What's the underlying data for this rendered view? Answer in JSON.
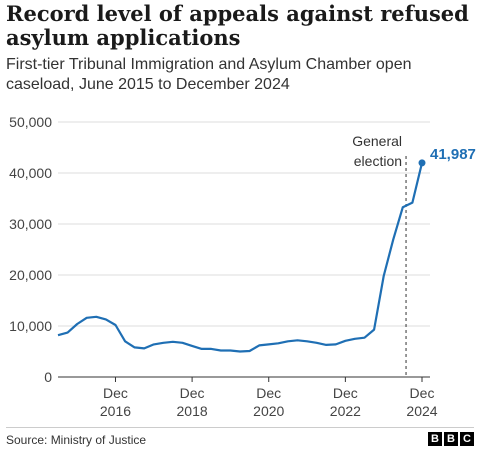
{
  "header": {
    "title": "Record level of appeals against refused asylum applications",
    "subtitle": "First-tier Tribunal Immigration and Asylum Chamber open caseload, June 2015 to December 2024"
  },
  "footer": {
    "source": "Source: Ministry of Justice",
    "logo_letters": [
      "B",
      "B",
      "C"
    ]
  },
  "chart_data": {
    "type": "line",
    "title": "Record level of appeals against refused asylum applications",
    "subtitle": "First-tier Tribunal Immigration and Asylum Chamber open caseload, June 2015 to December 2024",
    "xlabel": "",
    "ylabel": "",
    "ylim": [
      0,
      50000
    ],
    "yticks": [
      0,
      10000,
      20000,
      30000,
      40000,
      50000
    ],
    "ytick_labels": [
      "0",
      "10,000",
      "20,000",
      "30,000",
      "40,000",
      "50,000"
    ],
    "xlim": [
      "2015-06",
      "2024-12"
    ],
    "xticks": [
      {
        "date": "2016-12",
        "label_top": "Dec",
        "label_bottom": "2016"
      },
      {
        "date": "2018-12",
        "label_top": "Dec",
        "label_bottom": "2018"
      },
      {
        "date": "2020-12",
        "label_top": "Dec",
        "label_bottom": "2020"
      },
      {
        "date": "2022-12",
        "label_top": "Dec",
        "label_bottom": "2022"
      },
      {
        "date": "2024-12",
        "label_top": "Dec",
        "label_bottom": "2024"
      }
    ],
    "grid": true,
    "line_color": "#1f6fb4",
    "grid_color": "#dddddd",
    "series": [
      {
        "points": [
          {
            "x": "2015-06",
            "y": 8200
          },
          {
            "x": "2015-09",
            "y": 8700
          },
          {
            "x": "2015-12",
            "y": 10400
          },
          {
            "x": "2016-03",
            "y": 11600
          },
          {
            "x": "2016-06",
            "y": 11800
          },
          {
            "x": "2016-09",
            "y": 11300
          },
          {
            "x": "2016-12",
            "y": 10200
          },
          {
            "x": "2017-03",
            "y": 7000
          },
          {
            "x": "2017-06",
            "y": 5800
          },
          {
            "x": "2017-09",
            "y": 5600
          },
          {
            "x": "2017-12",
            "y": 6400
          },
          {
            "x": "2018-03",
            "y": 6700
          },
          {
            "x": "2018-06",
            "y": 6900
          },
          {
            "x": "2018-09",
            "y": 6700
          },
          {
            "x": "2018-12",
            "y": 6100
          },
          {
            "x": "2019-03",
            "y": 5500
          },
          {
            "x": "2019-06",
            "y": 5500
          },
          {
            "x": "2019-09",
            "y": 5200
          },
          {
            "x": "2019-12",
            "y": 5200
          },
          {
            "x": "2020-03",
            "y": 5000
          },
          {
            "x": "2020-06",
            "y": 5100
          },
          {
            "x": "2020-09",
            "y": 6200
          },
          {
            "x": "2020-12",
            "y": 6400
          },
          {
            "x": "2021-03",
            "y": 6600
          },
          {
            "x": "2021-06",
            "y": 7000
          },
          {
            "x": "2021-09",
            "y": 7200
          },
          {
            "x": "2021-12",
            "y": 7000
          },
          {
            "x": "2022-03",
            "y": 6700
          },
          {
            "x": "2022-06",
            "y": 6300
          },
          {
            "x": "2022-09",
            "y": 6400
          },
          {
            "x": "2022-12",
            "y": 7100
          },
          {
            "x": "2023-03",
            "y": 7500
          },
          {
            "x": "2023-06",
            "y": 7700
          },
          {
            "x": "2023-09",
            "y": 9300
          },
          {
            "x": "2023-12",
            "y": 19800
          },
          {
            "x": "2024-03",
            "y": 27000
          },
          {
            "x": "2024-06",
            "y": 33300
          },
          {
            "x": "2024-09",
            "y": 34200
          },
          {
            "x": "2024-12",
            "y": 41987
          }
        ]
      }
    ],
    "annotations": [
      {
        "type": "vline",
        "x": "2024-07",
        "label_lines": [
          "General",
          "election"
        ]
      },
      {
        "type": "point",
        "x": "2024-12",
        "y": 41987,
        "label": "41,987"
      }
    ]
  }
}
